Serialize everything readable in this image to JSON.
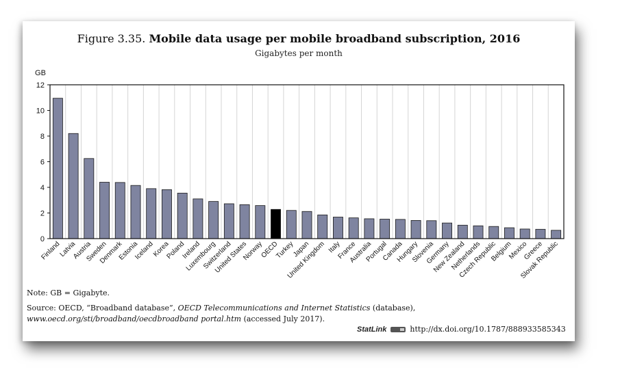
{
  "figure": {
    "number": "Figure 3.35.",
    "title": "Mobile data usage per mobile broadband subscription, 2016",
    "subtitle": "Gigabytes per month"
  },
  "note": "Note: GB = Gigabyte.",
  "source": {
    "prefix": "Source: OECD, “Broadband database”, ",
    "pub": "OECD Telecommunications and Internet Statistics",
    "mid": " (database), ",
    "url": "www.oecd.org/sti/broadband/oecdbroadband portal.htm",
    "suffix": " (accessed July 2017)."
  },
  "statlink": {
    "label": "StatLink",
    "url": "http://dx.doi.org/10.1787/888933585343"
  },
  "chart_data": {
    "type": "bar",
    "title": "Mobile data usage per mobile broadband subscription, 2016",
    "subtitle": "Gigabytes per month",
    "ylabel": "GB",
    "xlabel": "",
    "ylim": [
      0,
      12
    ],
    "yticks": [
      0,
      2,
      4,
      6,
      8,
      10,
      12
    ],
    "grid": "vertical",
    "categories": [
      "Finland",
      "Latvia",
      "Austria",
      "Sweden",
      "Denmark",
      "Estonia",
      "Iceland",
      "Korea",
      "Poland",
      "Ireland",
      "Luxembourg",
      "Switzerland",
      "United States",
      "Norway",
      "OECD",
      "Turkey",
      "Japan",
      "United Kingdom",
      "Italy",
      "France",
      "Australia",
      "Portugal",
      "Canada",
      "Hungary",
      "Slovenia",
      "Germany",
      "New Zealand",
      "Netherlands",
      "Czech Republic",
      "Belgium",
      "Mexico",
      "Greece",
      "Slovak Republic"
    ],
    "values": [
      10.95,
      8.2,
      6.25,
      4.4,
      4.38,
      4.15,
      3.9,
      3.82,
      3.55,
      3.1,
      2.9,
      2.72,
      2.65,
      2.58,
      2.28,
      2.2,
      2.12,
      1.85,
      1.68,
      1.62,
      1.55,
      1.52,
      1.5,
      1.42,
      1.4,
      1.22,
      1.05,
      1.0,
      0.95,
      0.85,
      0.75,
      0.73,
      0.65
    ],
    "highlight": "OECD",
    "bar_color": "#7f84a0",
    "highlight_color": "#000000",
    "edge_color": "#1a1a1a"
  }
}
